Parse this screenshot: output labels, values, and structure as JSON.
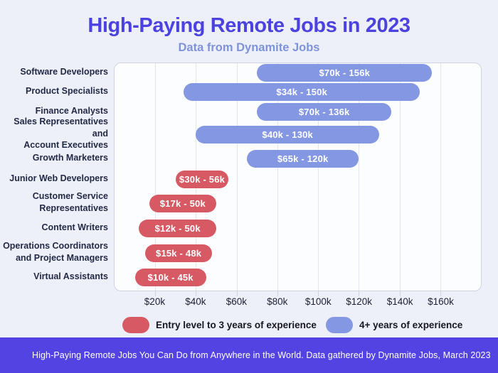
{
  "page": {
    "title": "High-Paying Remote Jobs in 2023",
    "subtitle": "Data from Dynamite Jobs",
    "footer": "High-Paying Remote Jobs You Can Do from Anywhere in the World. Data gathered by Dynamite Jobs, March 2023"
  },
  "colors": {
    "background": "#eef0f9",
    "title": "#4c42e0",
    "subtitle": "#7e93da",
    "plot_background": "#fcfdff",
    "plot_border": "#cfd3e0",
    "gridline": "#e4e6ef",
    "entry_level_bar": "#d75963",
    "experienced_bar": "#8397e2",
    "bar_text": "#ffffff",
    "footer_background": "#5343e2",
    "footer_text": "#ffffff"
  },
  "legend": {
    "items": [
      {
        "label": "Entry level to 3 years of experience",
        "color": "#d75963"
      },
      {
        "label": "4+ years of experience",
        "color": "#8397e2"
      }
    ]
  },
  "chart_data": {
    "type": "bar",
    "variant": "horizontal-range-bars",
    "title": "High-Paying Remote Jobs in 2023",
    "subtitle": "Data from Dynamite Jobs",
    "xlabel": "",
    "ylabel": "",
    "x_axis": {
      "unit": "USD thousands",
      "min_k": 0,
      "max_k": 180,
      "tick_values_k": [
        20,
        40,
        60,
        80,
        100,
        120,
        140,
        160
      ],
      "tick_labels": [
        "$20k",
        "$40k",
        "$60k",
        "$80k",
        "$100k",
        "$120k",
        "$140k",
        "$160k"
      ],
      "grid": true
    },
    "legend_position": "bottom",
    "jobs": [
      {
        "label_lines": [
          "Software Developers"
        ],
        "min_k": 70,
        "max_k": 156,
        "range_label": "$70k - 156k",
        "series": "4+ years of experience"
      },
      {
        "label_lines": [
          "Product Specialists"
        ],
        "min_k": 34,
        "max_k": 150,
        "range_label": "$34k - 150k",
        "series": "4+ years of experience"
      },
      {
        "label_lines": [
          "Finance Analysts"
        ],
        "min_k": 70,
        "max_k": 136,
        "range_label": "$70k - 136k",
        "series": "4+ years of experience"
      },
      {
        "label_lines": [
          "Sales Representatives and",
          "Account Executives"
        ],
        "min_k": 40,
        "max_k": 130,
        "range_label": "$40k - 130k",
        "series": "4+ years of experience"
      },
      {
        "label_lines": [
          "Growth Marketers"
        ],
        "min_k": 65,
        "max_k": 120,
        "range_label": "$65k - 120k",
        "series": "4+ years of experience"
      },
      {
        "label_lines": [
          "Junior Web Developers"
        ],
        "min_k": 30,
        "max_k": 56,
        "range_label": "$30k - 56k",
        "series": "Entry level to 3 years of experience"
      },
      {
        "label_lines": [
          "Customer Service",
          "Representatives"
        ],
        "min_k": 17,
        "max_k": 50,
        "range_label": "$17k - 50k",
        "series": "Entry level to 3 years of experience"
      },
      {
        "label_lines": [
          "Content Writers"
        ],
        "min_k": 12,
        "max_k": 50,
        "range_label": "$12k - 50k",
        "series": "Entry level to 3 years of experience"
      },
      {
        "label_lines": [
          "Operations Coordinators",
          "and Project Managers"
        ],
        "min_k": 15,
        "max_k": 48,
        "range_label": "$15k - 48k",
        "series": "Entry level to 3 years of experience"
      },
      {
        "label_lines": [
          "Virtual Assistants"
        ],
        "min_k": 10,
        "max_k": 45,
        "range_label": "$10k - 45k",
        "series": "Entry level to 3 years of experience"
      }
    ]
  }
}
